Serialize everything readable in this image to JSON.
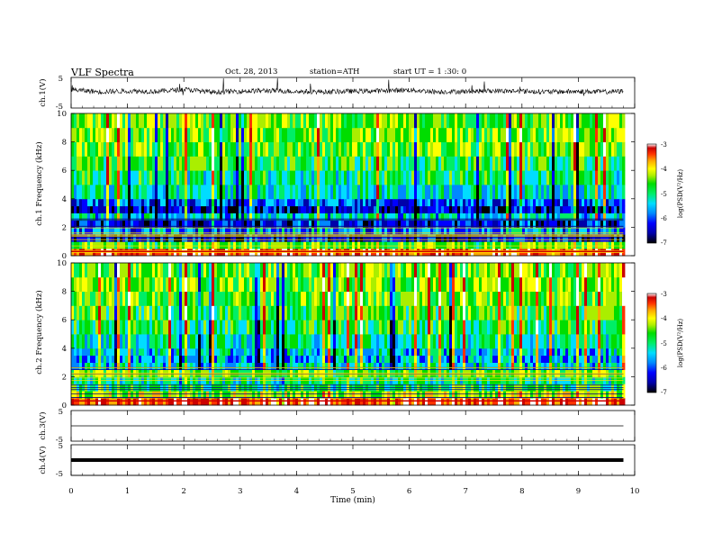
{
  "header": {
    "title": "VLF Spectra",
    "date": "Oct. 28, 2013",
    "station": "station=ATH",
    "start": "start UT =  1 :30: 0"
  },
  "chart_data": [
    {
      "type": "line",
      "name": "ch.1 waveform",
      "ylabel": "ch.1(V)",
      "ylim": [
        -5,
        5
      ],
      "yticks": [
        "5",
        "-5"
      ],
      "xlim": [
        0,
        9.8
      ],
      "x": [
        0,
        0.5,
        1,
        1.5,
        2,
        2.5,
        3,
        3.5,
        4,
        4.5,
        5,
        5.5,
        6,
        6.5,
        7,
        7.5,
        8,
        8.5,
        9,
        9.5,
        9.8
      ],
      "y": [
        1.0,
        0.3,
        0.6,
        0.4,
        1.1,
        0.2,
        0.5,
        0.7,
        0.4,
        0.3,
        0.5,
        0.6,
        0.9,
        0.3,
        0.4,
        0.6,
        0.5,
        0.3,
        0.4,
        0.3,
        0.5
      ]
    },
    {
      "type": "heatmap",
      "name": "ch.1 spectrogram",
      "ylabel": "ch.1 Frequency (kHz)",
      "ylim": [
        0,
        10
      ],
      "yticks": [
        "0",
        "2",
        "4",
        "6",
        "8",
        "10"
      ],
      "xlim": [
        0,
        9.8
      ],
      "rows": [
        "0-0.5 kHz",
        "0.5-1",
        "1-1.5",
        "1.5-2",
        "2-2.5",
        "2.5-3",
        "3-3.5",
        "3.5-4",
        "4-5",
        "5-6",
        "6-7",
        "7-8",
        "8-9",
        "9-10"
      ],
      "values": [
        -3.6,
        -4.9,
        -6.4,
        -5.9,
        -6.3,
        -5.6,
        -6.4,
        -6.1,
        -5.5,
        -5.3,
        -5.1,
        -4.9,
        -4.8,
        -4.8
      ],
      "colorbar": {
        "label": "log(PSD(V²/Hz)",
        "range": [
          -7,
          -3
        ],
        "ticks": [
          "-3",
          "-4",
          "-5",
          "-6",
          "-7"
        ]
      }
    },
    {
      "type": "heatmap",
      "name": "ch.2 spectrogram",
      "ylabel": "ch.2 Frequency (kHz)",
      "ylim": [
        0,
        10
      ],
      "yticks": [
        "0",
        "2",
        "4",
        "6",
        "8",
        "10"
      ],
      "xlim": [
        0,
        9.8
      ],
      "rows": [
        "0-0.5 kHz",
        "0.5-1",
        "1-1.5",
        "1.5-2",
        "2-2.5",
        "2.5-3",
        "3-3.5",
        "3.5-4",
        "4-5",
        "5-6",
        "6-7",
        "7-8",
        "8-9",
        "9-10"
      ],
      "values": [
        -3.7,
        -4.6,
        -5.2,
        -5.4,
        -4.9,
        -5.6,
        -5.8,
        -5.6,
        -5.4,
        -5.2,
        -5.0,
        -4.9,
        -4.8,
        -4.8
      ],
      "colorbar": {
        "label": "log(PSD(V²/Hz)",
        "range": [
          -7,
          -3
        ],
        "ticks": [
          "-3",
          "-4",
          "-5",
          "-6",
          "-7"
        ]
      }
    },
    {
      "type": "line",
      "name": "ch.3 waveform",
      "ylabel": "ch.3(V)",
      "ylim": [
        -5,
        5
      ],
      "yticks": [
        "5",
        "-5"
      ],
      "xlim": [
        0,
        9.8
      ],
      "x": [
        0,
        9.8
      ],
      "y": [
        0,
        0
      ]
    },
    {
      "type": "line",
      "name": "ch.4 waveform",
      "ylabel": "ch.4(V)",
      "ylim": [
        -5,
        5
      ],
      "yticks": [
        "5",
        "-5"
      ],
      "xlim": [
        0,
        9.8
      ],
      "x": [
        0,
        9.8
      ],
      "y": [
        0,
        0
      ]
    }
  ],
  "xaxis": {
    "label": "Time (min)",
    "ticks": [
      "0",
      "1",
      "2",
      "3",
      "4",
      "5",
      "6",
      "7",
      "8",
      "9",
      "10"
    ],
    "range": [
      0,
      10
    ]
  },
  "colors": {
    "frame": "#000000",
    "colormap": [
      "#000000",
      "#0000aa",
      "#0000ff",
      "#0088ff",
      "#00ddff",
      "#00ee66",
      "#00dd00",
      "#aaee00",
      "#ffff00",
      "#ffaa00",
      "#ff3300",
      "#cc0000",
      "#ffffff"
    ]
  }
}
